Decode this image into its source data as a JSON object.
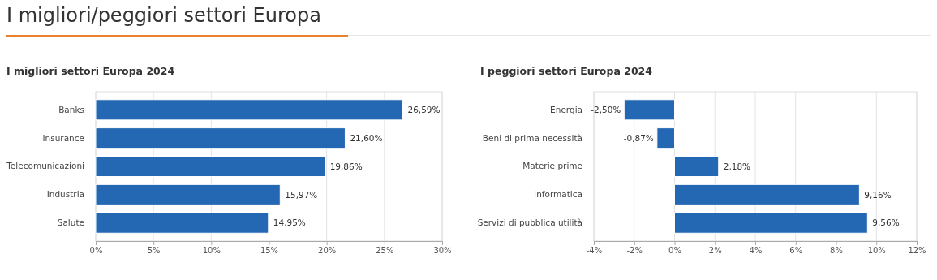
{
  "chart_data": [
    {
      "type": "bar",
      "orientation": "horizontal",
      "title": "I migliori/peggiori settori Europa",
      "subtitle": "I migliori settori Europa 2024",
      "categories": [
        "Banks",
        "Insurance",
        "Telecomunicazioni",
        "Industria",
        "Salute"
      ],
      "values": [
        26.59,
        21.6,
        19.86,
        15.97,
        14.95
      ],
      "color": "#2468b3",
      "value_labels": [
        "26,59%",
        "21,60%",
        "19,86%",
        "15,97%",
        "14,95%"
      ],
      "xlim": [
        0,
        30
      ],
      "xticks": [
        {
          "value": 0,
          "label": "0%"
        },
        {
          "value": 5,
          "label": "5%"
        },
        {
          "value": 10,
          "label": "10%"
        },
        {
          "value": 15,
          "label": "15%"
        },
        {
          "value": 20,
          "label": "20%"
        },
        {
          "value": 25,
          "label": "25%"
        },
        {
          "value": 30,
          "label": "30%"
        }
      ],
      "grid": "x"
    },
    {
      "type": "bar",
      "orientation": "horizontal",
      "title": "I peggiori settori Europa 2024",
      "categories": [
        "Energia",
        "Beni di prima necessità",
        "Materie prime",
        "Informatica",
        "Servizi di pubblica utilità"
      ],
      "values": [
        -2.5,
        -0.87,
        2.18,
        9.16,
        9.56
      ],
      "color": "#2468b3",
      "value_labels": [
        "-2,50%",
        "-0,87%",
        "2,18%",
        "9,16%",
        "9,56%"
      ],
      "xlim": [
        -4,
        12
      ],
      "xticks": [
        {
          "value": -4,
          "label": "-4%"
        },
        {
          "value": -2,
          "label": "-2%"
        },
        {
          "value": 0,
          "label": "0%"
        },
        {
          "value": 2,
          "label": "2%"
        },
        {
          "value": 4,
          "label": "4%"
        },
        {
          "value": 6,
          "label": "6%"
        },
        {
          "value": 8,
          "label": "8%"
        },
        {
          "value": 10,
          "label": "10%"
        },
        {
          "value": 12,
          "label": "12%"
        }
      ],
      "grid": "x"
    }
  ]
}
